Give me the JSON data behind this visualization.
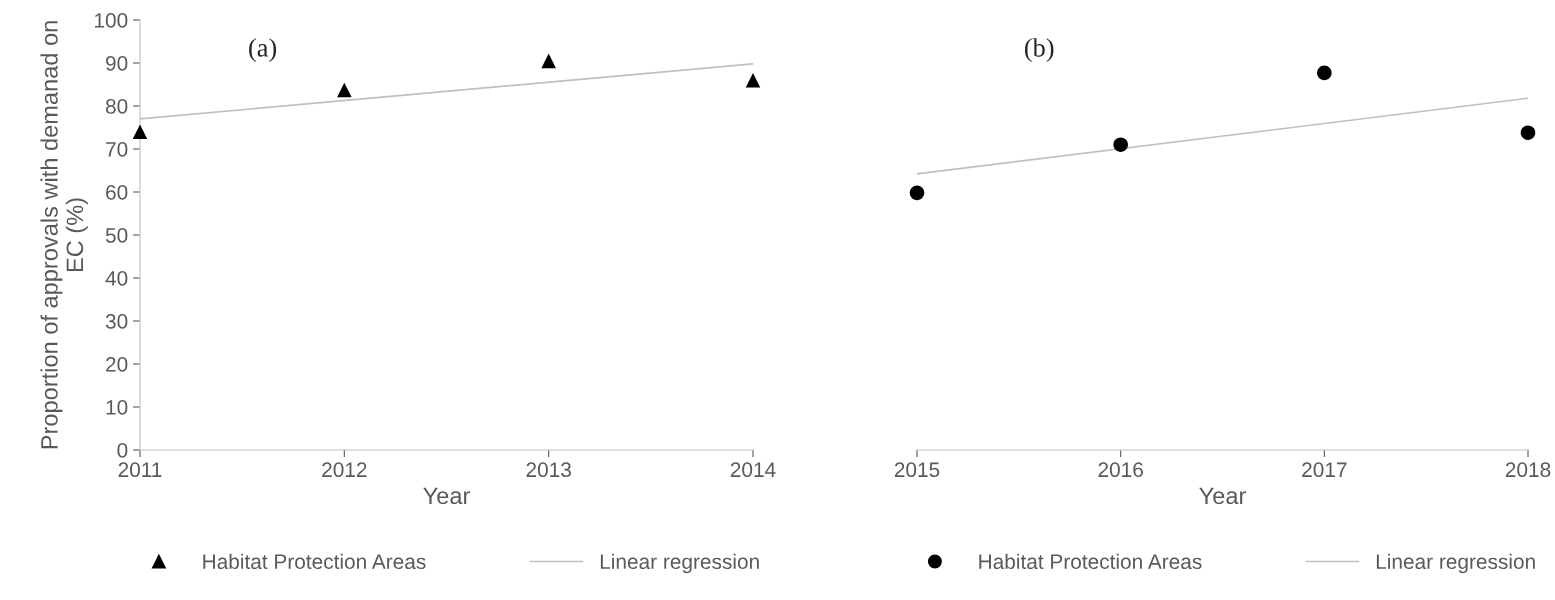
{
  "chart_data": [
    {
      "type": "scatter",
      "xlabel": "Year",
      "ylabel": "Proportion of approvals with demanad on EC (%)",
      "annotations": [
        "(a)"
      ],
      "x": [
        2011,
        2012,
        2013,
        2014
      ],
      "xlim": [
        2011,
        2014
      ],
      "xticks": [
        2011,
        2012,
        2013,
        2014
      ],
      "ylim": [
        0,
        100
      ],
      "yticks": [
        0,
        10,
        20,
        30,
        40,
        50,
        60,
        70,
        80,
        90,
        100
      ],
      "grid": false,
      "legend": "bottom",
      "series": [
        {
          "name": "Habitat Protection Areas",
          "color": "#000000",
          "marker": "triangle",
          "values": [
            74,
            83.7,
            90.5,
            86
          ]
        },
        {
          "name": "Linear regression",
          "type": "line",
          "color": "#bfbfbf",
          "marker": "none",
          "x": [
            2011,
            2014
          ],
          "values": [
            77,
            89.8
          ]
        }
      ]
    },
    {
      "type": "scatter",
      "xlabel": "Year",
      "annotations": [
        "(b)"
      ],
      "x": [
        2015,
        2016,
        2017,
        2018
      ],
      "xlim": [
        2015,
        2018
      ],
      "xticks": [
        2015,
        2016,
        2017,
        2018
      ],
      "ylim": [
        0,
        100
      ],
      "tick_labels": "x",
      "grid": false,
      "legend": "bottom",
      "series": [
        {
          "name": "Habitat Protection Areas",
          "color": "#000000",
          "marker": "circle",
          "values": [
            59.8,
            71,
            87.7,
            73.8
          ]
        },
        {
          "name": "Linear regression",
          "type": "line",
          "color": "#bfbfbf",
          "marker": "none",
          "x": [
            2015,
            2018
          ],
          "values": [
            64.2,
            81.8
          ]
        }
      ]
    }
  ]
}
